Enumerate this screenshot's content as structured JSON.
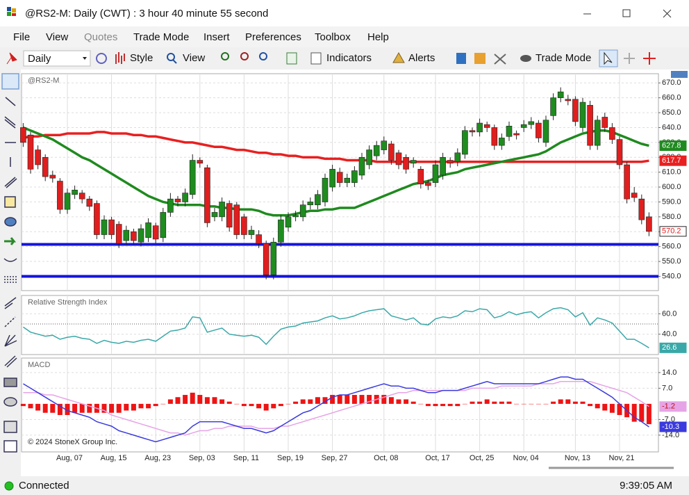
{
  "window": {
    "title": "@RS2-M: Daily (CWT) : 3 hour 40 minute 55 second"
  },
  "menu": [
    "File",
    "View",
    "Quotes",
    "Trade Mode",
    "Insert",
    "Preferences",
    "Toolbox",
    "Help"
  ],
  "toolbar": {
    "interval": "Daily",
    "items": [
      "Style",
      "View",
      "Indicators",
      "Alerts",
      "Trade Mode"
    ]
  },
  "status": {
    "connection": "Connected",
    "time": "9:39:05 AM"
  },
  "chart_data": [
    {
      "type": "candlestick",
      "title": "@RS2-M",
      "categories": [
        null,
        null,
        null,
        null,
        null,
        null,
        "Aug, 07",
        null,
        null,
        null,
        null,
        null,
        "Aug, 15",
        null,
        null,
        null,
        null,
        null,
        "Aug, 23",
        null,
        null,
        null,
        null,
        null,
        "Sep, 03",
        null,
        null,
        null,
        null,
        null,
        "Sep, 11",
        null,
        null,
        null,
        null,
        null,
        "Sep, 19",
        null,
        null,
        null,
        null,
        null,
        "Sep, 27",
        null,
        null,
        null,
        null,
        null,
        null,
        "Oct, 08",
        null,
        null,
        null,
        null,
        null,
        null,
        "Oct, 17",
        null,
        null,
        null,
        null,
        null,
        "Oct, 25",
        null,
        null,
        null,
        null,
        null,
        "Nov, 04",
        null,
        null,
        null,
        null,
        null,
        null,
        "Nov, 13",
        null,
        null,
        null,
        null,
        null,
        "Nov, 21",
        null,
        null,
        null,
        null
      ],
      "open": [
        640,
        635,
        625,
        620,
        608,
        604,
        585,
        595,
        596,
        592,
        589,
        568,
        578,
        575,
        564,
        570,
        563,
        566,
        574,
        566,
        583,
        592,
        590,
        595,
        618,
        613,
        580,
        580,
        589,
        588,
        580,
        568,
        568,
        562,
        541,
        563,
        573,
        580,
        580,
        588,
        588,
        590,
        600,
        610,
        603,
        603,
        608,
        615,
        621,
        625,
        629,
        623,
        620,
        616,
        612,
        603,
        603,
        608,
        618,
        617,
        622,
        638,
        637,
        642,
        640,
        628,
        634,
        636,
        640,
        642,
        643,
        630,
        648,
        660,
        659,
        659,
        640,
        655,
        628,
        647,
        640,
        632,
        615,
        596,
        592,
        580
      ],
      "high": [
        643,
        637,
        628,
        622,
        611,
        606,
        599,
        601,
        598,
        594,
        591,
        581,
        580,
        577,
        574,
        572,
        575,
        579,
        576,
        586,
        596,
        594,
        599,
        622,
        620,
        615,
        586,
        593,
        591,
        590,
        582,
        574,
        571,
        564,
        566,
        581,
        583,
        584,
        591,
        593,
        598,
        609,
        615,
        613,
        609,
        614,
        623,
        628,
        631,
        634,
        631,
        625,
        622,
        620,
        614,
        605,
        618,
        623,
        620,
        626,
        641,
        640,
        646,
        644,
        642,
        636,
        644,
        638,
        645,
        647,
        645,
        648,
        663,
        667,
        662,
        661,
        660,
        658,
        648,
        650,
        643,
        634,
        617,
        600,
        595,
        583
      ],
      "low": [
        627,
        609,
        612,
        604,
        603,
        582,
        582,
        592,
        589,
        584,
        565,
        565,
        565,
        559,
        561,
        561,
        560,
        563,
        562,
        563,
        580,
        587,
        587,
        592,
        613,
        573,
        577,
        577,
        570,
        565,
        565,
        565,
        559,
        538,
        538,
        560,
        570,
        577,
        577,
        585,
        585,
        587,
        597,
        600,
        600,
        600,
        605,
        612,
        618,
        622,
        615,
        612,
        609,
        613,
        599,
        598,
        600,
        605,
        613,
        614,
        619,
        634,
        634,
        637,
        625,
        625,
        631,
        632,
        637,
        639,
        630,
        627,
        645,
        657,
        655,
        641,
        637,
        625,
        625,
        637,
        629,
        612,
        589,
        590,
        575,
        567
      ],
      "close": [
        630,
        612,
        615,
        607,
        606,
        585,
        596,
        598,
        592,
        587,
        568,
        578,
        568,
        562,
        571,
        564,
        572,
        576,
        565,
        583,
        592,
        590,
        596,
        618,
        616,
        576,
        583,
        590,
        573,
        568,
        568,
        571,
        562,
        541,
        563,
        578,
        580,
        581,
        588,
        590,
        595,
        606,
        612,
        603,
        606,
        611,
        620,
        625,
        628,
        631,
        618,
        615,
        612,
        618,
        602,
        601,
        615,
        620,
        616,
        623,
        638,
        637,
        643,
        640,
        628,
        633,
        641,
        635,
        642,
        644,
        633,
        645,
        660,
        664,
        658,
        644,
        657,
        628,
        645,
        640,
        632,
        615,
        592,
        593,
        578,
        570.2
      ],
      "up_color": "#1e8c1e",
      "down_color": "#e01e1e",
      "series": [
        {
          "color": "#e82020",
          "values": [
            633,
            634,
            634,
            635,
            635,
            635,
            636,
            636,
            636,
            636,
            637,
            637,
            636,
            636,
            636,
            635,
            635,
            634,
            634,
            633,
            632,
            631,
            630,
            630,
            629,
            628,
            627,
            627,
            626,
            625,
            625,
            624,
            623,
            623,
            622,
            622,
            621,
            621,
            620,
            620,
            620,
            619,
            619,
            619,
            618,
            618,
            618,
            618,
            617,
            617,
            617,
            617,
            617,
            617,
            617,
            617,
            617,
            617,
            617,
            617,
            617,
            617,
            617,
            617,
            617,
            617,
            617,
            617,
            617,
            617,
            617,
            617,
            617,
            617,
            617,
            617,
            617,
            617,
            617,
            617,
            617,
            617,
            617,
            617,
            617,
            617.7
          ]
        },
        {
          "color": "#1f8a1f",
          "values": [
            640,
            638,
            636,
            634,
            632,
            629,
            626,
            623,
            620,
            618,
            615,
            612,
            609,
            606,
            603,
            600,
            597,
            594,
            592,
            590,
            589,
            588,
            588,
            588,
            588,
            587,
            587,
            586,
            586,
            585,
            585,
            585,
            584,
            582,
            581,
            581,
            581,
            582,
            583,
            584,
            584,
            585,
            585,
            586,
            586,
            586,
            588,
            590,
            592,
            594,
            596,
            598,
            600,
            602,
            603,
            604,
            606,
            608,
            609,
            610,
            612,
            613,
            614,
            615,
            616,
            617,
            618,
            619,
            620,
            621,
            622,
            624,
            627,
            630,
            632,
            634,
            636,
            637,
            638,
            638,
            637,
            635,
            633,
            631,
            629,
            627.8
          ]
        }
      ],
      "hlines": [
        561.5,
        540
      ],
      "hline_color": "#1414dc",
      "ylim": [
        530.4,
        676.2
      ],
      "yticks": [
        {
          "value": 540,
          "label": "540.0"
        },
        {
          "value": 550,
          "label": "550.0"
        },
        {
          "value": 560,
          "label": "560.0"
        },
        {
          "value": 570,
          "label": "570.0"
        },
        {
          "value": 580,
          "label": "580.0"
        },
        {
          "value": 590,
          "label": "590.0"
        },
        {
          "value": 600,
          "label": "600.0"
        },
        {
          "value": 610,
          "label": "610.0"
        },
        {
          "value": 620,
          "label": "620.0"
        },
        {
          "value": 630,
          "label": "630.0"
        },
        {
          "value": 640,
          "label": "640.0"
        },
        {
          "value": 650,
          "label": "650.0"
        },
        {
          "value": 660,
          "label": "660.0"
        },
        {
          "value": 670,
          "label": "670.0"
        }
      ],
      "grid": true,
      "last_value_labels": true
    },
    {
      "type": "line",
      "title": "Relative Strength Index",
      "series": [
        {
          "color": "#3aa8a8",
          "values": [
            47,
            42,
            40,
            38,
            39,
            35,
            37,
            38,
            36,
            35,
            31,
            34,
            32,
            31,
            33,
            32,
            34,
            35,
            33,
            38,
            43,
            44,
            46,
            57,
            56,
            42,
            44,
            46,
            40,
            39,
            38,
            39,
            37,
            30,
            38,
            45,
            47,
            48,
            51,
            52,
            53,
            56,
            58,
            55,
            56,
            58,
            61,
            63,
            64,
            65,
            58,
            56,
            54,
            56,
            50,
            49,
            55,
            57,
            56,
            58,
            63,
            62,
            65,
            64,
            56,
            58,
            62,
            59,
            61,
            62,
            56,
            61,
            65,
            66,
            64,
            57,
            61,
            49,
            56,
            54,
            51,
            43,
            35,
            35,
            31,
            26.6
          ]
        }
      ],
      "reference_line": 50,
      "ylim": [
        20,
        78
      ],
      "yticks": [
        {
          "value": 40,
          "label": "40.0"
        },
        {
          "value": 60,
          "label": "60.0"
        }
      ],
      "grid": true,
      "last_value_labels": true
    },
    {
      "type": "line",
      "title": "MACD",
      "copyright": "© 2024 StoneX Group Inc.",
      "histogram": {
        "color": "#ee1414",
        "values": [
          -1,
          -2,
          -3,
          -4,
          -4,
          -5,
          -5,
          -4,
          -4,
          -4,
          -4,
          -4,
          -4,
          -4,
          -3,
          -3,
          -2,
          -2,
          -1,
          0,
          2,
          3,
          4,
          5,
          4,
          3,
          3,
          2,
          1,
          0,
          -1,
          -1,
          -2,
          -3,
          -2,
          -1,
          0,
          1,
          2,
          2,
          3,
          3,
          4,
          4,
          4,
          4,
          4,
          4,
          4,
          4,
          3,
          2,
          2,
          1,
          0,
          -1,
          -1,
          -1,
          -1,
          -1,
          0,
          1,
          1,
          2,
          1,
          1,
          1,
          0,
          0,
          0,
          0,
          0,
          1,
          2,
          2,
          1,
          1,
          -1,
          -2,
          -3,
          -4,
          -5,
          -6,
          -8,
          -8,
          -9.1
        ]
      },
      "series": [
        {
          "color": "#e6a4e6",
          "values": [
            5,
            5,
            5,
            4,
            4,
            3,
            2,
            1,
            0,
            -1,
            -2,
            -3,
            -5,
            -6,
            -7,
            -8,
            -9,
            -10,
            -11,
            -12,
            -13,
            -13,
            -14,
            -13,
            -12,
            -12,
            -11,
            -11,
            -10,
            -10,
            -10,
            -10,
            -11,
            -11,
            -11,
            -10,
            -10,
            -9,
            -8,
            -7,
            -6,
            -5,
            -4,
            -3,
            -2,
            -1,
            0,
            1,
            2,
            3,
            4,
            5,
            5,
            6,
            6,
            6,
            6,
            6,
            6,
            6,
            6,
            7,
            7,
            7,
            7,
            8,
            8,
            8,
            8,
            8,
            9,
            9,
            9,
            10,
            10,
            10,
            10,
            10,
            9,
            8,
            7,
            6,
            5,
            3,
            1,
            -1.2
          ]
        },
        {
          "color": "#3a3ade",
          "values": [
            9,
            7,
            5,
            3,
            1,
            -1,
            -3,
            -4,
            -5,
            -6,
            -8,
            -9,
            -10,
            -12,
            -13,
            -14,
            -15,
            -16,
            -17,
            -16,
            -15,
            -14,
            -13,
            -10,
            -8,
            -8,
            -8,
            -8,
            -9,
            -10,
            -11,
            -11,
            -12,
            -13,
            -12,
            -10,
            -8,
            -6,
            -4,
            -3,
            -1,
            1,
            3,
            4,
            4,
            5,
            6,
            7,
            8,
            9,
            8,
            8,
            7,
            7,
            6,
            5,
            5,
            6,
            6,
            6,
            7,
            8,
            9,
            10,
            9,
            9,
            9,
            9,
            9,
            9,
            9,
            10,
            11,
            12,
            12,
            11,
            11,
            9,
            7,
            5,
            3,
            0,
            -3,
            -6,
            -8,
            -10.3
          ]
        }
      ],
      "ylim": [
        -21.5,
        20.5
      ],
      "yticks": [
        {
          "value": 14,
          "label": "14.0"
        },
        {
          "value": 7,
          "label": "7.0"
        },
        {
          "value": -7,
          "label": "-7.0"
        },
        {
          "value": -14,
          "label": "-14.0"
        }
      ],
      "grid": true,
      "last_value_labels": true
    }
  ]
}
